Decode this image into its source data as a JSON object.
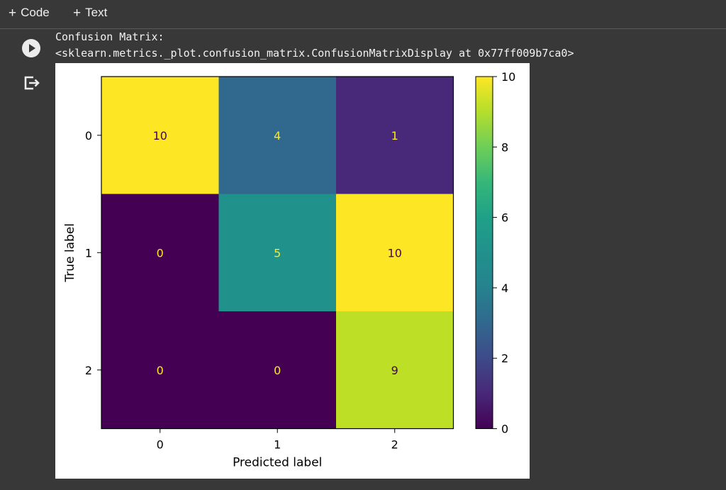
{
  "toolbar": {
    "code_label": "Code",
    "text_label": "Text",
    "plus": "+"
  },
  "output": {
    "line1": "Confusion Matrix:",
    "line2": "<sklearn.metrics._plot.confusion_matrix.ConfusionMatrixDisplay at 0x77ff009b7ca0>"
  },
  "icons": {
    "run": "play-circle-icon",
    "output": "output-exit-icon"
  },
  "chart_data": {
    "type": "heatmap",
    "title": "",
    "xlabel": "Predicted label",
    "ylabel": "True label",
    "x_categories": [
      "0",
      "1",
      "2"
    ],
    "y_categories": [
      "0",
      "1",
      "2"
    ],
    "values": [
      [
        10,
        4,
        1
      ],
      [
        0,
        5,
        10
      ],
      [
        0,
        0,
        9
      ]
    ],
    "colormap": "viridis",
    "colorbar": {
      "range": [
        0,
        10
      ],
      "ticks": [
        "0",
        "2",
        "4",
        "6",
        "8",
        "10"
      ]
    },
    "grid": false,
    "cell_colors": [
      [
        "#fde725",
        "#31688e",
        "#482878"
      ],
      [
        "#440154",
        "#21918c",
        "#fde725"
      ],
      [
        "#440154",
        "#440154",
        "#bddf26"
      ]
    ],
    "text_colors": {
      "on_dark": "#fde725",
      "on_light": "#440154"
    }
  }
}
